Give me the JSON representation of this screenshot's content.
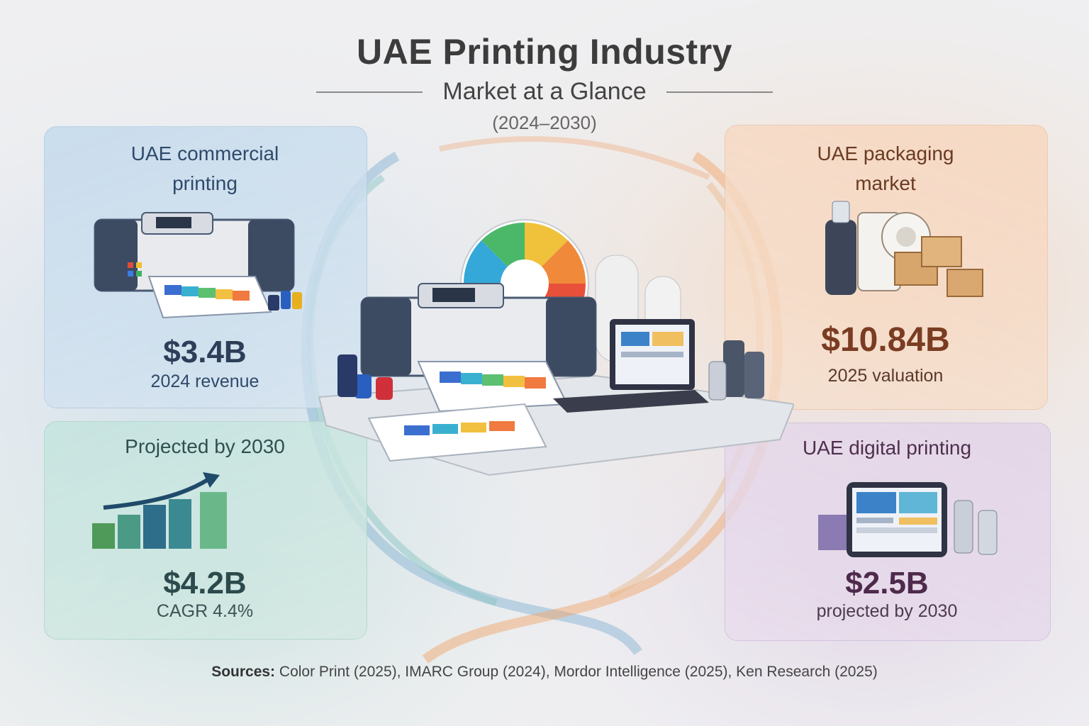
{
  "header": {
    "title": "UAE Printing Industry",
    "subtitle": "Market at a Glance",
    "years": "(2024–2030)"
  },
  "cards": {
    "commercial": {
      "title_line1": "UAE commercial",
      "title_line2": "printing",
      "value": "$3.4B",
      "note": "2024 revenue",
      "accent": "#2c3e58"
    },
    "projected": {
      "title": "Projected by 2030",
      "value": "$4.2B",
      "note": "CAGR 4.4%",
      "accent": "#2c4a4c"
    },
    "packaging": {
      "title_line1": "UAE packaging",
      "title_line2": "market",
      "value": "$10.84B",
      "note": "2025 valuation",
      "accent": "#7a3c22"
    },
    "digital": {
      "title": "UAE digital printing",
      "value": "$2.5B",
      "note": "projected by 2030",
      "accent": "#4e2a4c"
    }
  },
  "sources": {
    "label": "Sources:",
    "text": " Color Print (2025), IMARC Group (2024), Mordor Intelligence (2025), Ken Research (2025)"
  },
  "icons": [
    "printer-icon",
    "bar-chart-growth-icon",
    "packaging-boxes-icon",
    "tablet-icon",
    "color-wheel-icon",
    "laptop-icon"
  ]
}
